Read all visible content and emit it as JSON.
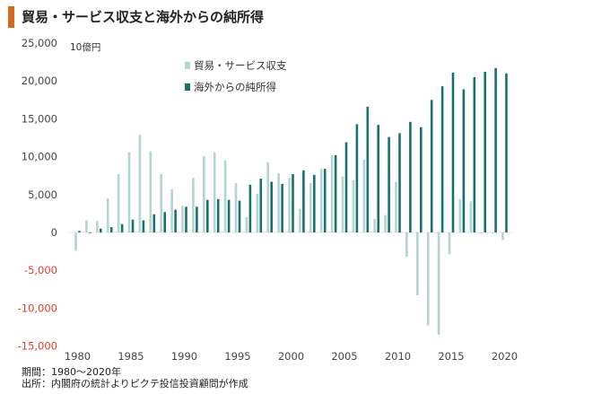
{
  "title": "貿易・サービス収支と海外からの純所得",
  "colors": {
    "accent": "#d2691e",
    "trade": "#b5d4d2",
    "income": "#19716b",
    "negative_tick": "#e03c28",
    "tick": "#444444"
  },
  "footer": {
    "period": "期間：1980～2020年",
    "source": "出所：内閣府の統計よりピクテ投信投資顧問が作成"
  },
  "chart_data": {
    "type": "bar",
    "unit_label": "10億円",
    "x": [
      1980,
      1981,
      1982,
      1983,
      1984,
      1985,
      1986,
      1987,
      1988,
      1989,
      1990,
      1991,
      1992,
      1993,
      1994,
      1995,
      1996,
      1997,
      1998,
      1999,
      2000,
      2001,
      2002,
      2003,
      2004,
      2005,
      2006,
      2007,
      2008,
      2009,
      2010,
      2011,
      2012,
      2013,
      2014,
      2015,
      2016,
      2017,
      2018,
      2019,
      2020
    ],
    "x_tick_labels": [
      "1980",
      "1985",
      "1990",
      "1995",
      "2000",
      "2005",
      "2010",
      "2015",
      "2020"
    ],
    "x_tick_values": [
      1980,
      1985,
      1990,
      1995,
      2000,
      2005,
      2010,
      2015,
      2020
    ],
    "ylim": [
      -15000,
      25000
    ],
    "y_ticks": [
      25000,
      20000,
      15000,
      10000,
      5000,
      0,
      -5000,
      -10000,
      -15000
    ],
    "y_tick_labels": [
      "25,000",
      "20,000",
      "15,000",
      "10,000",
      "5,000",
      "0",
      "-5,000",
      "-10,000",
      "-15,000"
    ],
    "legend_position": "top-center",
    "series": [
      {
        "name": "貿易・サービス収支",
        "values": [
          -2400,
          1600,
          1500,
          4500,
          7700,
          10600,
          12900,
          10700,
          7700,
          5700,
          3500,
          7200,
          10100,
          10600,
          9500,
          6500,
          2000,
          5100,
          9300,
          7800,
          7200,
          3100,
          6500,
          8400,
          10200,
          7400,
          6900,
          9600,
          1800,
          2300,
          6700,
          -3200,
          -8300,
          -12300,
          -13500,
          -2900,
          4400,
          4100,
          -100,
          -100,
          -1000
        ]
      },
      {
        "name": "海外からの純所得",
        "values": [
          200,
          -100,
          500,
          700,
          1100,
          1700,
          1600,
          2400,
          2700,
          3000,
          3400,
          3400,
          4300,
          4400,
          4300,
          4200,
          6300,
          7100,
          6700,
          6400,
          7700,
          8200,
          7600,
          8400,
          10200,
          11900,
          14300,
          16600,
          14200,
          12600,
          13100,
          14600,
          13900,
          17500,
          19300,
          21100,
          18900,
          20500,
          21200,
          21700,
          21000
        ]
      }
    ]
  }
}
